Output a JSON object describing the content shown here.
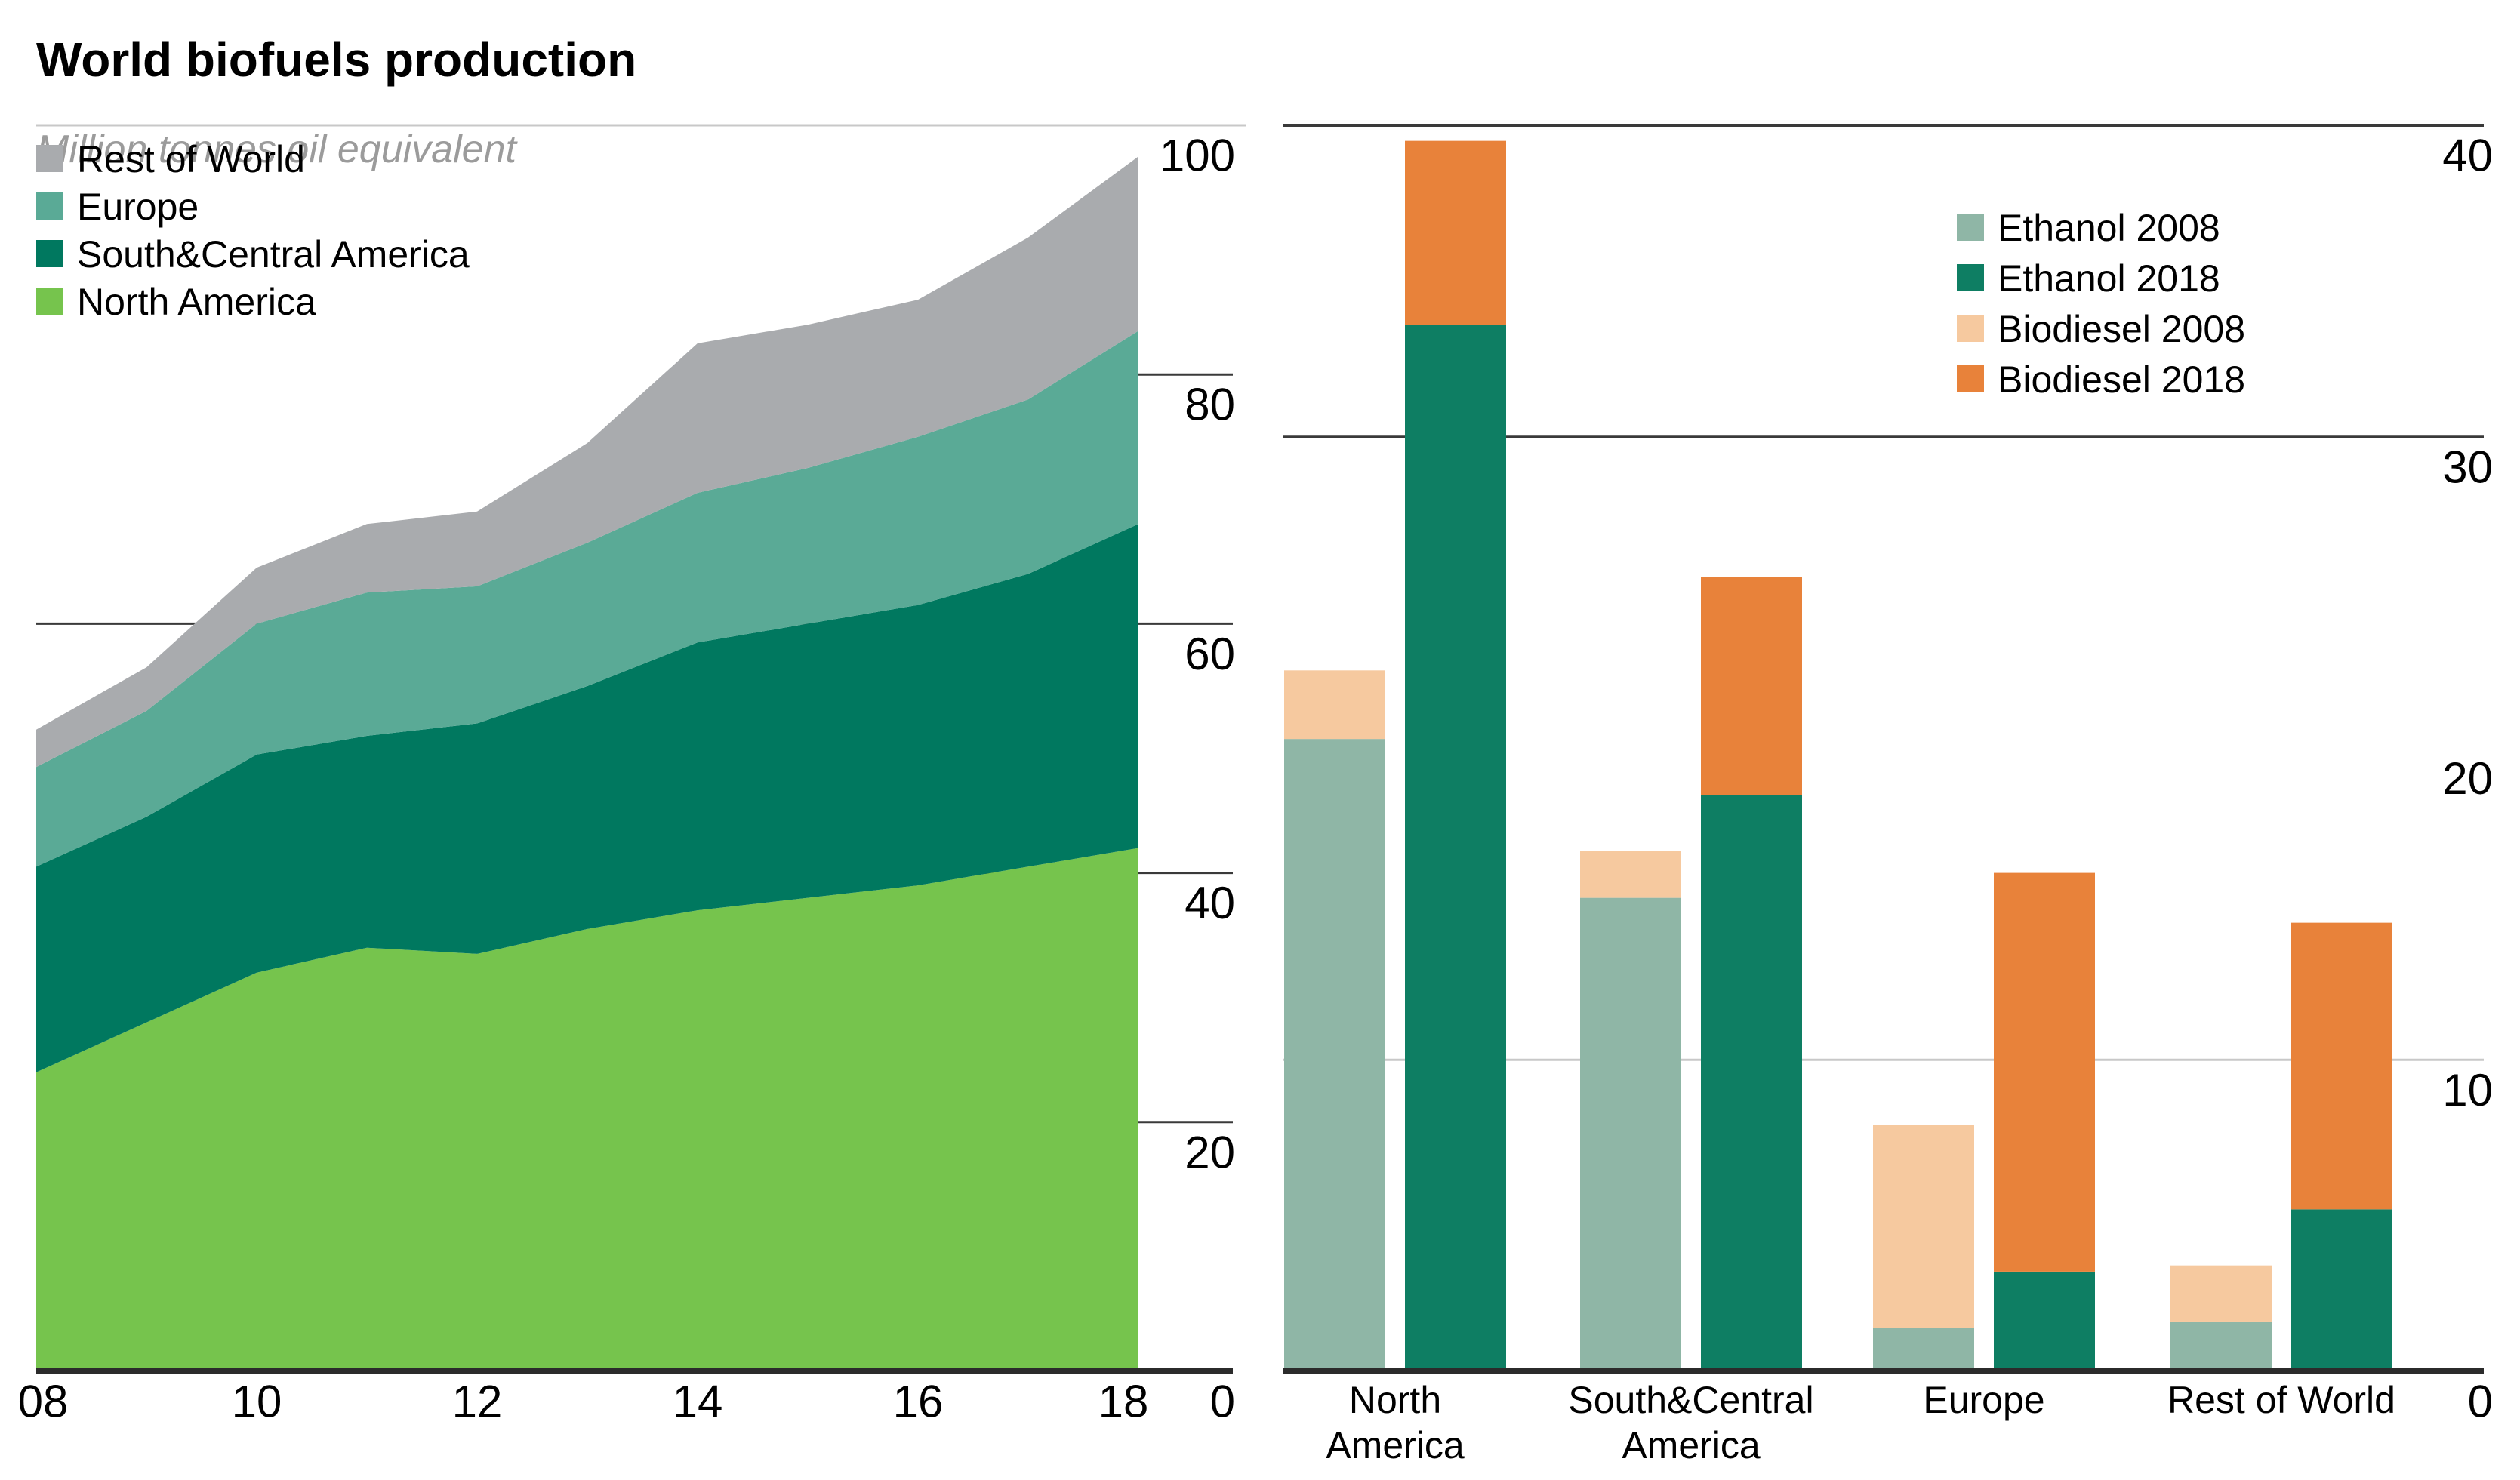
{
  "title": "World biofuels production",
  "subtitle": "Million tonnes oil equivalent",
  "colors": {
    "north_america": "#76c44d",
    "south_central_america": "#00785f",
    "europe": "#5aaa96",
    "rest_of_world": "#a9abae",
    "ethanol_2008": "#8fb6a6",
    "ethanol_2018": "#0e7e63",
    "biodiesel_2008": "#f6c99f",
    "biodiesel_2018": "#e8823a",
    "axis_baseline": "#2b2b2b",
    "grid_dark": "#3a3a3a",
    "grid_light": "#c8c8c8",
    "label_text": "#000000",
    "subtitle_text": "#9b9b9b"
  },
  "chart_data": [
    {
      "type": "area",
      "name": "world-biofuels-production-by-region",
      "stacked": true,
      "x": [
        2008,
        2009,
        2010,
        2011,
        2012,
        2013,
        2014,
        2015,
        2016,
        2017,
        2018
      ],
      "x_tick_labels": [
        "08",
        "10",
        "12",
        "14",
        "16",
        "18"
      ],
      "x_tick_years": [
        2008,
        2010,
        2012,
        2014,
        2016,
        2018
      ],
      "ylim": [
        0,
        100
      ],
      "yticks": [
        0,
        20,
        40,
        60,
        80,
        100
      ],
      "grid": "single visible inner gridline at 60, tick stubs at 20/40/60/80 in label gutter",
      "legend_position": "top-left",
      "legend": [
        {
          "label": "Rest of World",
          "color_key": "rest_of_world"
        },
        {
          "label": "Europe",
          "color_key": "europe"
        },
        {
          "label": "South&Central America",
          "color_key": "south_central_america"
        },
        {
          "label": "North America",
          "color_key": "north_america"
        }
      ],
      "series": [
        {
          "name": "North America",
          "color_key": "north_america",
          "values": [
            24,
            28,
            32,
            34,
            33.5,
            35.5,
            37,
            38,
            39,
            40.5,
            42
          ]
        },
        {
          "name": "South&Central America",
          "color_key": "south_central_america",
          "values": [
            16.5,
            16.5,
            17.5,
            17,
            18.5,
            19.5,
            21.5,
            22,
            22.5,
            23.5,
            26
          ]
        },
        {
          "name": "Europe",
          "color_key": "europe",
          "values": [
            8,
            8.5,
            10.5,
            11.5,
            11,
            11.5,
            12,
            12.5,
            13.5,
            14,
            15.5
          ]
        },
        {
          "name": "Rest of World",
          "color_key": "rest_of_world",
          "values": [
            3,
            3.5,
            4.5,
            5.5,
            6,
            8,
            12,
            11.5,
            11,
            13,
            14
          ]
        }
      ],
      "zero_axis_label": "0"
    },
    {
      "type": "bar",
      "name": "ethanol-vs-biodiesel-by-region",
      "paired_stacked_bars": true,
      "categories": [
        "North America",
        "South&Central America",
        "Europe",
        "Rest of World"
      ],
      "category_label_lines": [
        [
          "North",
          "America"
        ],
        [
          "South&Central",
          "America"
        ],
        [
          "Europe"
        ],
        [
          "Rest of World"
        ]
      ],
      "ylim": [
        0,
        40
      ],
      "yticks": [
        0,
        10,
        20,
        30,
        40
      ],
      "visible_gridlines": [
        40,
        30,
        10
      ],
      "legend_position": "top-right",
      "legend": [
        {
          "label": "Ethanol 2008",
          "color_key": "ethanol_2008"
        },
        {
          "label": "Ethanol 2018",
          "color_key": "ethanol_2018"
        },
        {
          "label": "Biodiesel 2008",
          "color_key": "biodiesel_2008"
        },
        {
          "label": "Biodiesel 2018",
          "color_key": "biodiesel_2018"
        }
      ],
      "series": [
        {
          "name": "Ethanol 2008",
          "color_key": "ethanol_2008",
          "bar": "2008",
          "values": [
            20.3,
            15.2,
            1.4,
            1.6
          ]
        },
        {
          "name": "Ethanol 2018",
          "color_key": "ethanol_2018",
          "bar": "2018",
          "values": [
            33.6,
            18.5,
            3.2,
            5.2
          ]
        },
        {
          "name": "Biodiesel 2008",
          "color_key": "biodiesel_2008",
          "bar": "2008",
          "values": [
            2.2,
            1.5,
            6.5,
            1.8
          ]
        },
        {
          "name": "Biodiesel 2018",
          "color_key": "biodiesel_2018",
          "bar": "2018",
          "values": [
            5.9,
            7.0,
            12.8,
            9.2
          ]
        }
      ]
    }
  ]
}
